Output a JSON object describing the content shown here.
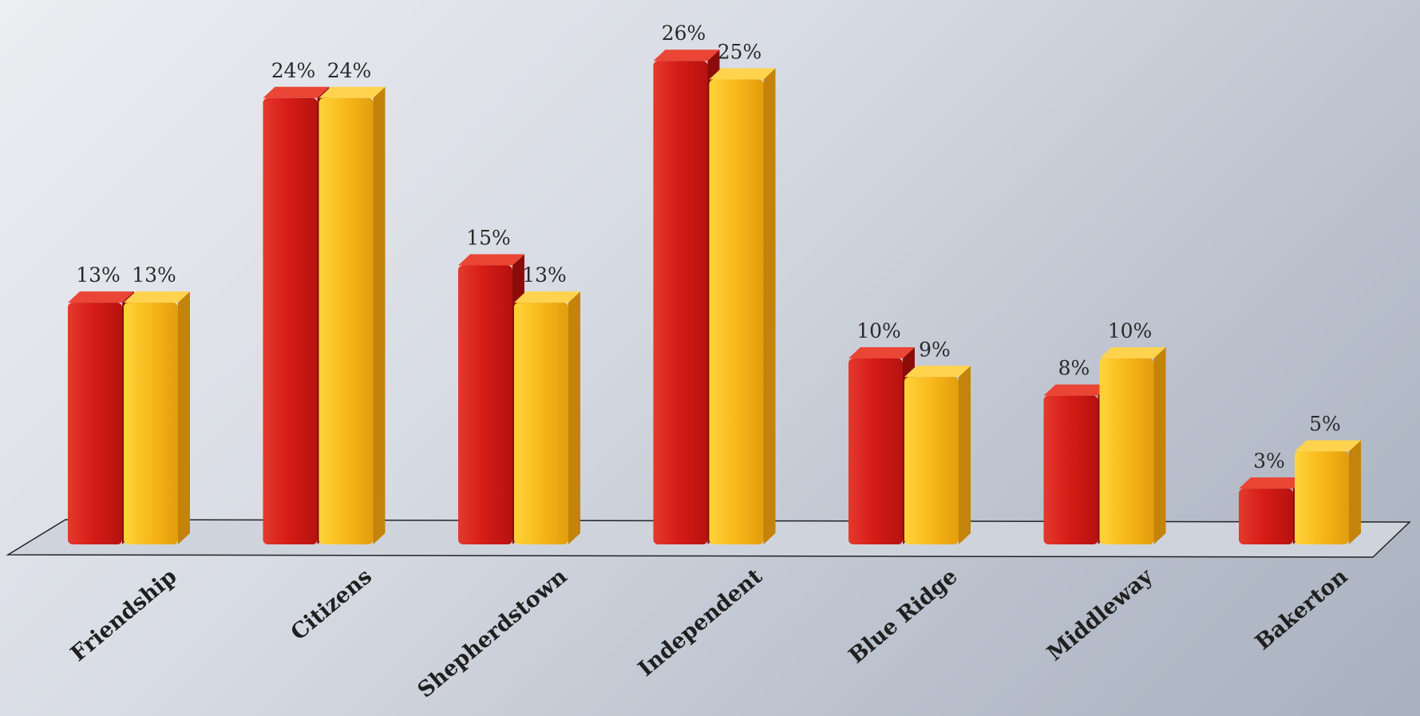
{
  "chart_data": {
    "type": "bar",
    "style": "3d",
    "title": "",
    "xlabel": "",
    "ylabel": "",
    "ylim": [
      0,
      26
    ],
    "grid": false,
    "legend": "none",
    "categories": [
      "Friendship",
      "Citizens",
      "Shepherdstown",
      "Independent",
      "Blue Ridge",
      "Middleway",
      "Bakerton"
    ],
    "series": [
      {
        "color": "#d81e1e",
        "values": [
          13,
          24,
          15,
          26,
          10,
          8,
          3
        ],
        "labels": [
          "13%",
          "24%",
          "15%",
          "26%",
          "10%",
          "8%",
          "3%"
        ]
      },
      {
        "color": "#f6b51b",
        "values": [
          13,
          24,
          13,
          25,
          9,
          10,
          5
        ],
        "labels": [
          "13%",
          "24%",
          "13%",
          "25%",
          "9%",
          "10%",
          "5%"
        ]
      }
    ]
  }
}
